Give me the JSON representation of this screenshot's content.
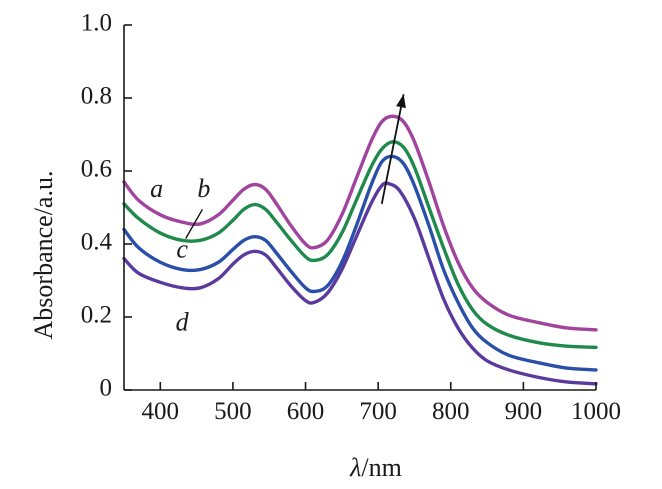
{
  "chart_data": {
    "type": "line",
    "title": "",
    "xlabel": "nm",
    "xlabel_symbol": "λ",
    "xlabel_separator": "/",
    "ylabel": "Absorbance/a.u.",
    "xlim": [
      350,
      1000
    ],
    "ylim": [
      0,
      1.0
    ],
    "x_ticks": [
      400,
      500,
      600,
      700,
      800,
      900,
      1000
    ],
    "x_tick_labels": [
      "400",
      "500",
      "600",
      "700",
      "800",
      "900",
      "1000"
    ],
    "y_ticks": [
      0,
      0.2,
      0.4,
      0.6,
      0.8,
      1.0
    ],
    "y_tick_labels": [
      "0",
      "0.2",
      "0.4",
      "0.6",
      "0.8",
      "1.0"
    ],
    "grid": false,
    "series": [
      {
        "name": "a",
        "color": "#a0449e",
        "points": [
          [
            350,
            0.57
          ],
          [
            370,
            0.52
          ],
          [
            400,
            0.48
          ],
          [
            430,
            0.46
          ],
          [
            455,
            0.455
          ],
          [
            480,
            0.48
          ],
          [
            500,
            0.52
          ],
          [
            515,
            0.55
          ],
          [
            530,
            0.563
          ],
          [
            545,
            0.55
          ],
          [
            560,
            0.51
          ],
          [
            580,
            0.45
          ],
          [
            600,
            0.4
          ],
          [
            612,
            0.39
          ],
          [
            630,
            0.41
          ],
          [
            650,
            0.48
          ],
          [
            670,
            0.58
          ],
          [
            690,
            0.68
          ],
          [
            705,
            0.735
          ],
          [
            720,
            0.75
          ],
          [
            735,
            0.735
          ],
          [
            750,
            0.68
          ],
          [
            770,
            0.57
          ],
          [
            790,
            0.45
          ],
          [
            810,
            0.35
          ],
          [
            830,
            0.28
          ],
          [
            850,
            0.24
          ],
          [
            880,
            0.205
          ],
          [
            920,
            0.185
          ],
          [
            960,
            0.17
          ],
          [
            1000,
            0.165
          ]
        ]
      },
      {
        "name": "b",
        "color": "#1f8a4c",
        "points": [
          [
            350,
            0.51
          ],
          [
            370,
            0.47
          ],
          [
            400,
            0.43
          ],
          [
            430,
            0.41
          ],
          [
            455,
            0.41
          ],
          [
            480,
            0.43
          ],
          [
            500,
            0.465
          ],
          [
            515,
            0.495
          ],
          [
            530,
            0.508
          ],
          [
            545,
            0.495
          ],
          [
            560,
            0.46
          ],
          [
            580,
            0.41
          ],
          [
            600,
            0.365
          ],
          [
            612,
            0.355
          ],
          [
            630,
            0.37
          ],
          [
            650,
            0.43
          ],
          [
            670,
            0.52
          ],
          [
            690,
            0.61
          ],
          [
            705,
            0.66
          ],
          [
            720,
            0.68
          ],
          [
            735,
            0.665
          ],
          [
            750,
            0.61
          ],
          [
            770,
            0.5
          ],
          [
            790,
            0.39
          ],
          [
            810,
            0.29
          ],
          [
            830,
            0.22
          ],
          [
            850,
            0.18
          ],
          [
            880,
            0.15
          ],
          [
            920,
            0.13
          ],
          [
            960,
            0.12
          ],
          [
            1000,
            0.117
          ]
        ]
      },
      {
        "name": "c",
        "color": "#2a4fa8",
        "points": [
          [
            350,
            0.44
          ],
          [
            370,
            0.39
          ],
          [
            400,
            0.35
          ],
          [
            430,
            0.33
          ],
          [
            455,
            0.33
          ],
          [
            480,
            0.35
          ],
          [
            500,
            0.385
          ],
          [
            515,
            0.41
          ],
          [
            530,
            0.42
          ],
          [
            545,
            0.41
          ],
          [
            560,
            0.375
          ],
          [
            580,
            0.325
          ],
          [
            600,
            0.28
          ],
          [
            612,
            0.27
          ],
          [
            630,
            0.285
          ],
          [
            650,
            0.35
          ],
          [
            670,
            0.45
          ],
          [
            690,
            0.56
          ],
          [
            705,
            0.625
          ],
          [
            720,
            0.64
          ],
          [
            735,
            0.62
          ],
          [
            750,
            0.56
          ],
          [
            770,
            0.45
          ],
          [
            790,
            0.33
          ],
          [
            810,
            0.24
          ],
          [
            830,
            0.17
          ],
          [
            850,
            0.13
          ],
          [
            880,
            0.095
          ],
          [
            920,
            0.075
          ],
          [
            960,
            0.06
          ],
          [
            1000,
            0.055
          ]
        ]
      },
      {
        "name": "d",
        "color": "#5b3a9e",
        "points": [
          [
            350,
            0.36
          ],
          [
            370,
            0.32
          ],
          [
            400,
            0.295
          ],
          [
            430,
            0.28
          ],
          [
            455,
            0.28
          ],
          [
            480,
            0.305
          ],
          [
            500,
            0.345
          ],
          [
            515,
            0.37
          ],
          [
            530,
            0.38
          ],
          [
            545,
            0.37
          ],
          [
            560,
            0.335
          ],
          [
            580,
            0.285
          ],
          [
            600,
            0.245
          ],
          [
            612,
            0.24
          ],
          [
            630,
            0.265
          ],
          [
            650,
            0.33
          ],
          [
            670,
            0.42
          ],
          [
            690,
            0.51
          ],
          [
            705,
            0.56
          ],
          [
            715,
            0.565
          ],
          [
            730,
            0.545
          ],
          [
            750,
            0.47
          ],
          [
            770,
            0.36
          ],
          [
            790,
            0.25
          ],
          [
            810,
            0.17
          ],
          [
            830,
            0.115
          ],
          [
            850,
            0.08
          ],
          [
            880,
            0.055
          ],
          [
            920,
            0.035
          ],
          [
            960,
            0.022
          ],
          [
            1000,
            0.017
          ]
        ]
      }
    ],
    "annotations": [
      {
        "type": "arrow",
        "from": [
          705,
          0.51
        ],
        "to": [
          735,
          0.81
        ],
        "description": "peak red-shift direction from d to a"
      },
      {
        "type": "label",
        "text": "a",
        "x": 395,
        "y": 0.545
      },
      {
        "type": "label",
        "text": "b",
        "x": 460,
        "y": 0.545
      },
      {
        "type": "label",
        "text": "c",
        "x": 430,
        "y": 0.38
      },
      {
        "type": "label",
        "text": "d",
        "x": 430,
        "y": 0.18
      },
      {
        "type": "leader",
        "from": [
          435,
          0.415
        ],
        "to": [
          458,
          0.495
        ]
      }
    ]
  }
}
